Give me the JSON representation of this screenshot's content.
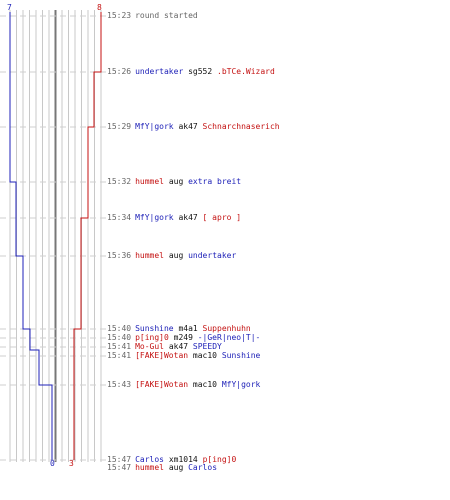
{
  "team_counts": {
    "blue_start": "7",
    "red_start": "8",
    "blue_end": "0",
    "red_end": "3"
  },
  "colors": {
    "blue": "#1f22b8",
    "red": "#c41212",
    "grid": "#c8c8c8",
    "dash": "#cfcfcf",
    "center": "#777777"
  },
  "events": [
    {
      "time": "15:23",
      "text": "round started"
    },
    {
      "time": "15:26",
      "killer": "undertaker",
      "killer_team": "blue",
      "weapon": "sg552",
      "victim": ".bTCe.Wizard",
      "victim_team": "red"
    },
    {
      "time": "15:29",
      "killer": "MfY|gork",
      "killer_team": "blue",
      "weapon": "ak47",
      "victim": "Schnarchnaserich",
      "victim_team": "red"
    },
    {
      "time": "15:32",
      "killer": "hummel",
      "killer_team": "red",
      "weapon": "aug",
      "victim": "extra breit",
      "victim_team": "blue"
    },
    {
      "time": "15:34",
      "killer": "MfY|gork",
      "killer_team": "blue",
      "weapon": "ak47",
      "victim": "[ apro ]",
      "victim_team": "red"
    },
    {
      "time": "15:36",
      "killer": "hummel",
      "killer_team": "red",
      "weapon": "aug",
      "victim": "undertaker",
      "victim_team": "blue"
    },
    {
      "time": "15:40",
      "killer": "Sunshine",
      "killer_team": "blue",
      "weapon": "m4a1",
      "victim": "Suppenhuhn",
      "victim_team": "red"
    },
    {
      "time": "15:40",
      "killer": "p[ing]0",
      "killer_team": "red",
      "weapon": "m249",
      "victim": "-|GeR|neo|T|-",
      "victim_team": "blue"
    },
    {
      "time": "15:41",
      "killer": "Mo-Gul",
      "killer_team": "red",
      "weapon": "ak47",
      "victim": "SPEEDY",
      "victim_team": "blue"
    },
    {
      "time": "15:41",
      "killer": "[FAKE]Wotan",
      "killer_team": "red",
      "weapon": "mac10",
      "victim": "Sunshine",
      "victim_team": "blue"
    },
    {
      "time": "15:43",
      "killer": "[FAKE]Wotan",
      "killer_team": "red",
      "weapon": "mac10",
      "victim": "MfY|gork",
      "victim_team": "blue"
    },
    {
      "time": "15:47",
      "killer": "Carlos",
      "killer_team": "blue",
      "weapon": "xm1014",
      "victim": "p[ing]0",
      "victim_team": "red"
    },
    {
      "time": "15:47",
      "killer": "hummel",
      "killer_team": "red",
      "weapon": "aug",
      "victim": "Carlos",
      "victim_team": "blue"
    }
  ]
}
